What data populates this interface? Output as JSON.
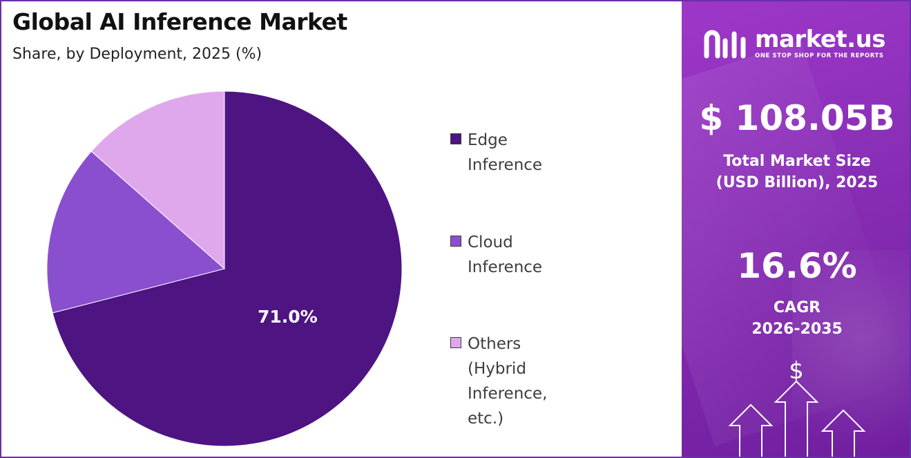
{
  "chart_data": {
    "type": "pie",
    "title": "Global AI Inference Market",
    "subtitle": "Share, by Deployment, 2025 (%)",
    "categories": [
      "Edge Inference",
      "Cloud Inference",
      "Others (Hybrid\nInference, etc.)"
    ],
    "values": [
      71.0,
      15.5,
      13.5
    ],
    "data_labels": [
      "71.0%",
      "",
      ""
    ],
    "colors": [
      "#4e1482",
      "#8a4fcf",
      "#e0a8ec"
    ],
    "legend_position": "right"
  },
  "sidebar": {
    "brand_name": "market.us",
    "brand_tagline": "ONE STOP SHOP FOR THE REPORTS",
    "market_size_value": "$ 108.05B",
    "market_size_label": "Total Market Size\n(USD Billion), 2025",
    "cagr_value": "16.6%",
    "cagr_label": "CAGR\n2026-2035",
    "currency_symbol": "$",
    "background_color": "#8a2fb8"
  }
}
